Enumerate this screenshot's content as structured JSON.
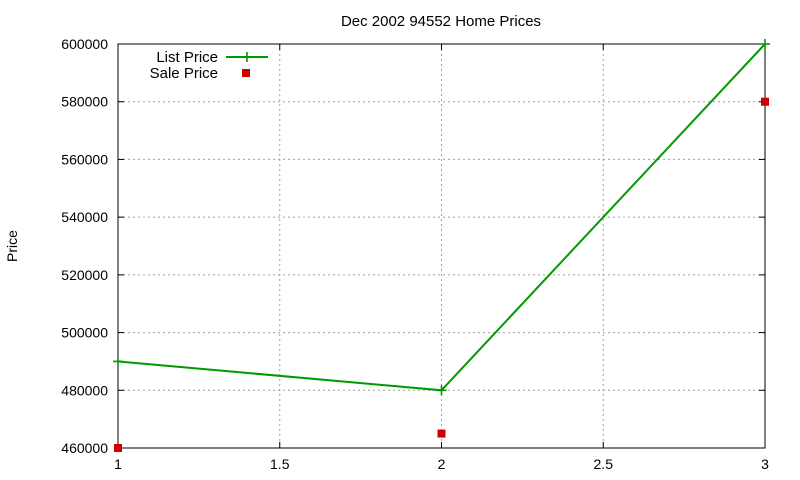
{
  "chart_data": {
    "type": "line",
    "title": "Dec 2002 94552 Home Prices",
    "xlabel": "",
    "ylabel": "Price",
    "xlim": [
      1,
      3
    ],
    "ylim": [
      460000,
      600000
    ],
    "xticks": [
      1,
      1.5,
      2,
      2.5,
      3
    ],
    "xtick_labels": [
      "1",
      "1.5",
      "2",
      "2.5",
      "3"
    ],
    "yticks": [
      460000,
      480000,
      500000,
      520000,
      540000,
      560000,
      580000,
      600000
    ],
    "ytick_labels": [
      "460000",
      "480000",
      "500000",
      "520000",
      "540000",
      "560000",
      "580000",
      "600000"
    ],
    "grid": true,
    "legend_position": "top-left",
    "series": [
      {
        "name": "List Price",
        "style": "linespoints",
        "marker": "plus",
        "color": "#009900",
        "x": [
          1,
          2,
          3
        ],
        "y": [
          490000,
          480000,
          600000
        ]
      },
      {
        "name": "Sale Price",
        "style": "points",
        "marker": "square",
        "color": "#cc0000",
        "x": [
          1,
          2,
          3
        ],
        "y": [
          460000,
          465000,
          580000
        ]
      }
    ]
  }
}
